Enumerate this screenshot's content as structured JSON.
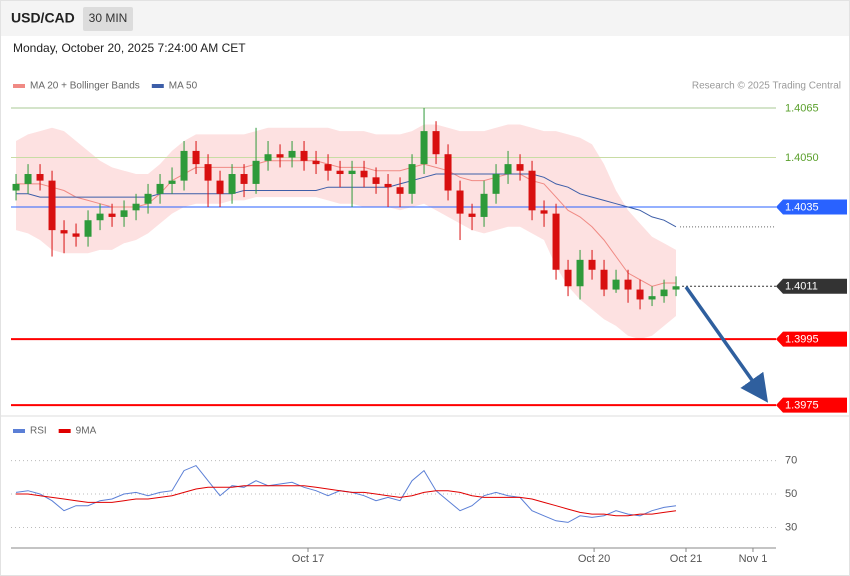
{
  "header": {
    "symbol": "USD/CAD",
    "timeframe": "30 MIN",
    "datetime": "Monday, October 20, 2025 7:24:00 AM CET"
  },
  "chart_data": [
    {
      "type": "candlestick",
      "annotation": "Research © 2025 Trading Central",
      "up_color": "#2e9a3a",
      "down_color": "#d81010",
      "ylim": [
        1.39723,
        1.40856
      ],
      "open": [
        1.404,
        1.4042,
        1.4045,
        1.4043,
        1.4028,
        1.4027,
        1.4026,
        1.4031,
        1.4033,
        1.4032,
        1.4034,
        1.4036,
        1.4039,
        1.4042,
        1.4043,
        1.4052,
        1.4048,
        1.4043,
        1.4039,
        1.4045,
        1.4042,
        1.4049,
        1.4051,
        1.405,
        1.4052,
        1.4049,
        1.4048,
        1.4046,
        1.4045,
        1.4046,
        1.4044,
        1.4042,
        1.4041,
        1.4039,
        1.4048,
        1.4058,
        1.4051,
        1.404,
        1.4033,
        1.4032,
        1.4039,
        1.4045,
        1.4048,
        1.4046,
        1.4034,
        1.4033,
        1.4016,
        1.4011,
        1.4019,
        1.4016,
        1.401,
        1.4013,
        1.401,
        1.4007,
        1.4008,
        1.401
      ],
      "high": [
        1.4045,
        1.4048,
        1.4048,
        1.4046,
        1.4031,
        1.403,
        1.4034,
        1.4036,
        1.4036,
        1.4037,
        1.4039,
        1.4042,
        1.4045,
        1.4047,
        1.4055,
        1.4055,
        1.4051,
        1.4046,
        1.4048,
        1.4048,
        1.4059,
        1.4055,
        1.4054,
        1.4055,
        1.4055,
        1.4052,
        1.4051,
        1.4049,
        1.4049,
        1.4049,
        1.4047,
        1.4045,
        1.4044,
        1.4051,
        1.4065,
        1.4061,
        1.4054,
        1.4043,
        1.4036,
        1.4043,
        1.4048,
        1.4052,
        1.4051,
        1.4049,
        1.4037,
        1.4036,
        1.4019,
        1.4022,
        1.4022,
        1.4019,
        1.4016,
        1.4016,
        1.4013,
        1.4011,
        1.4013,
        1.4014
      ],
      "low": [
        1.4037,
        1.4039,
        1.404,
        1.402,
        1.4021,
        1.4023,
        1.4023,
        1.4028,
        1.4029,
        1.4029,
        1.4031,
        1.4033,
        1.4036,
        1.4039,
        1.404,
        1.4045,
        1.4035,
        1.4035,
        1.4036,
        1.4038,
        1.4039,
        1.4046,
        1.4047,
        1.4047,
        1.4046,
        1.4045,
        1.4043,
        1.4041,
        1.4035,
        1.4041,
        1.4039,
        1.4035,
        1.4035,
        1.4036,
        1.4045,
        1.4048,
        1.4037,
        1.4025,
        1.4028,
        1.4029,
        1.4036,
        1.4042,
        1.4043,
        1.4031,
        1.4029,
        1.4013,
        1.4008,
        1.4007,
        1.4013,
        1.4008,
        1.4009,
        1.4006,
        1.4004,
        1.4005,
        1.4006,
        1.4008
      ],
      "close": [
        1.4042,
        1.4045,
        1.4043,
        1.4028,
        1.4027,
        1.4026,
        1.4031,
        1.4033,
        1.4032,
        1.4034,
        1.4036,
        1.4039,
        1.4042,
        1.4043,
        1.4052,
        1.4048,
        1.4043,
        1.4039,
        1.4045,
        1.4042,
        1.4049,
        1.4051,
        1.405,
        1.4052,
        1.4049,
        1.4048,
        1.4046,
        1.4045,
        1.4046,
        1.4044,
        1.4042,
        1.4041,
        1.4039,
        1.4048,
        1.4058,
        1.4051,
        1.404,
        1.4033,
        1.4032,
        1.4039,
        1.4045,
        1.4048,
        1.4046,
        1.4034,
        1.4033,
        1.4016,
        1.4011,
        1.4019,
        1.4016,
        1.401,
        1.4013,
        1.401,
        1.4007,
        1.4008,
        1.401,
        1.4011
      ],
      "series": [
        {
          "name": "MA 20 + Bollinger Bands",
          "color": "#f08a84",
          "band_color": "#fde1e1",
          "values": [
            1.4042,
            1.4042,
            1.4042,
            1.4041,
            1.404,
            1.4038,
            1.4037,
            1.4036,
            1.4035,
            1.4035,
            1.4035,
            1.4036,
            1.4039,
            1.4043,
            1.4045,
            1.4047,
            1.4047,
            1.4047,
            1.4047,
            1.4047,
            1.4048,
            1.4049,
            1.4049,
            1.4049,
            1.4049,
            1.4049,
            1.4048,
            1.4047,
            1.4047,
            1.4047,
            1.4046,
            1.4046,
            1.4046,
            1.4047,
            1.4048,
            1.4047,
            1.4046,
            1.4044,
            1.4043,
            1.4043,
            1.4044,
            1.4045,
            1.4045,
            1.4043,
            1.4042,
            1.4038,
            1.4034,
            1.4032,
            1.4029,
            1.4025,
            1.402,
            1.4015,
            1.4013,
            1.4011,
            1.4012,
            1.4012
          ],
          "upper": [
            1.4055,
            1.4057,
            1.4058,
            1.4059,
            1.4058,
            1.4055,
            1.4052,
            1.4049,
            1.4047,
            1.4046,
            1.4045,
            1.4045,
            1.4048,
            1.4052,
            1.4055,
            1.4057,
            1.4057,
            1.4057,
            1.4057,
            1.4057,
            1.4058,
            1.4059,
            1.4059,
            1.4059,
            1.4059,
            1.4059,
            1.4059,
            1.4058,
            1.4058,
            1.4058,
            1.4057,
            1.4057,
            1.4057,
            1.4058,
            1.406,
            1.406,
            1.4059,
            1.4058,
            1.4058,
            1.4058,
            1.4059,
            1.406,
            1.406,
            1.4059,
            1.4058,
            1.4058,
            1.4057,
            1.4056,
            1.4054,
            1.4048,
            1.404,
            1.4034,
            1.403,
            1.4026,
            1.4024,
            1.4022
          ],
          "lower": [
            1.4028,
            1.4027,
            1.4025,
            1.4022,
            1.4021,
            1.4021,
            1.4021,
            1.4022,
            1.4022,
            1.4024,
            1.4025,
            1.4027,
            1.403,
            1.4033,
            1.4035,
            1.4036,
            1.4036,
            1.4036,
            1.4037,
            1.4037,
            1.4038,
            1.4038,
            1.4038,
            1.4038,
            1.4038,
            1.4038,
            1.4037,
            1.4036,
            1.4036,
            1.4035,
            1.4035,
            1.4035,
            1.4034,
            1.4035,
            1.4036,
            1.4034,
            1.4032,
            1.403,
            1.4028,
            1.4027,
            1.4028,
            1.4029,
            1.4029,
            1.4027,
            1.4025,
            1.4017,
            1.4011,
            1.4007,
            1.4004,
            1.4001,
            1.3999,
            1.3996,
            1.3995,
            1.3996,
            1.3999,
            1.4002
          ]
        },
        {
          "name": "MA 50",
          "color": "#3d5ea8",
          "values": [
            1.4039,
            1.4039,
            1.4038,
            1.4038,
            1.4038,
            1.4038,
            1.4038,
            1.4038,
            1.4038,
            1.4038,
            1.4038,
            1.4038,
            1.4039,
            1.4039,
            1.4039,
            1.4039,
            1.4039,
            1.4039,
            1.4039,
            1.404,
            1.404,
            1.404,
            1.404,
            1.404,
            1.404,
            1.404,
            1.4041,
            1.4041,
            1.4041,
            1.4041,
            1.4041,
            1.4041,
            1.4042,
            1.4043,
            1.4044,
            1.4045,
            1.4045,
            1.4045,
            1.4045,
            1.4045,
            1.4045,
            1.4045,
            1.4045,
            1.4045,
            1.4044,
            1.4042,
            1.4041,
            1.4039,
            1.4038,
            1.4037,
            1.4036,
            1.4035,
            1.4034,
            1.4032,
            1.4031,
            1.4029
          ]
        }
      ],
      "levels": [
        {
          "value": 1.4065,
          "color": "#a8c896",
          "text_color": "#5aa02c",
          "boxed": false,
          "dashed": false
        },
        {
          "value": 1.405,
          "label": "1.4050",
          "color": "#c8dca4",
          "text_color": "#5aa02c",
          "boxed": false,
          "dashed": false
        },
        {
          "value": 1.4035,
          "color": "#2962ff",
          "text_color": "#ffffff",
          "boxed": true,
          "dashed": false
        },
        {
          "value": 1.4011,
          "color": "#333333",
          "text_color": "#ffffff",
          "boxed": true,
          "dashed": true
        },
        {
          "value": 1.3995,
          "color": "#ff0000",
          "text_color": "#ffffff",
          "boxed": true,
          "dashed": false
        },
        {
          "value": 1.3975,
          "color": "#ff0000",
          "text_color": "#ffffff",
          "boxed": true,
          "dashed": false
        }
      ]
    },
    {
      "type": "line",
      "ylim": [
        19.5,
        94.3
      ],
      "yticks": [
        30,
        50,
        70
      ],
      "grid": true,
      "xlim": [
        -0.42,
        63.33
      ],
      "xticks": [
        {
          "value": 24.33,
          "label": "Oct 17"
        },
        {
          "value": 48.17,
          "label": "Oct 20"
        },
        {
          "value": 55.83,
          "label": "Oct 21"
        },
        {
          "value": 61.41,
          "label": "Nov 1"
        }
      ],
      "series": [
        {
          "name": "RSI",
          "color": "#5b7fd6",
          "values": [
            51,
            52,
            50,
            46,
            40,
            43,
            43,
            46,
            47,
            50,
            51,
            49,
            51,
            52,
            64,
            67,
            58,
            49,
            55,
            54,
            58,
            55,
            56,
            57,
            54,
            52,
            49,
            52,
            51,
            49,
            46,
            48,
            46,
            58,
            64,
            52,
            46,
            40,
            43,
            49,
            51,
            49,
            48,
            40,
            37,
            34,
            33,
            37,
            36,
            37,
            40,
            38,
            37,
            40,
            42,
            43
          ]
        },
        {
          "name": "9MA",
          "color": "#e00000",
          "values": [
            50,
            50,
            49,
            48,
            47,
            46,
            45,
            45,
            45,
            46,
            47,
            47,
            48,
            49,
            51,
            53,
            54,
            54,
            54,
            55,
            55,
            55,
            55,
            55,
            55,
            54,
            53,
            52,
            51,
            51,
            50,
            49,
            48,
            49,
            51,
            52,
            52,
            51,
            49,
            48,
            48,
            48,
            48,
            47,
            45,
            43,
            41,
            39,
            38,
            38,
            37,
            37,
            38,
            38,
            39,
            40
          ]
        }
      ]
    }
  ]
}
